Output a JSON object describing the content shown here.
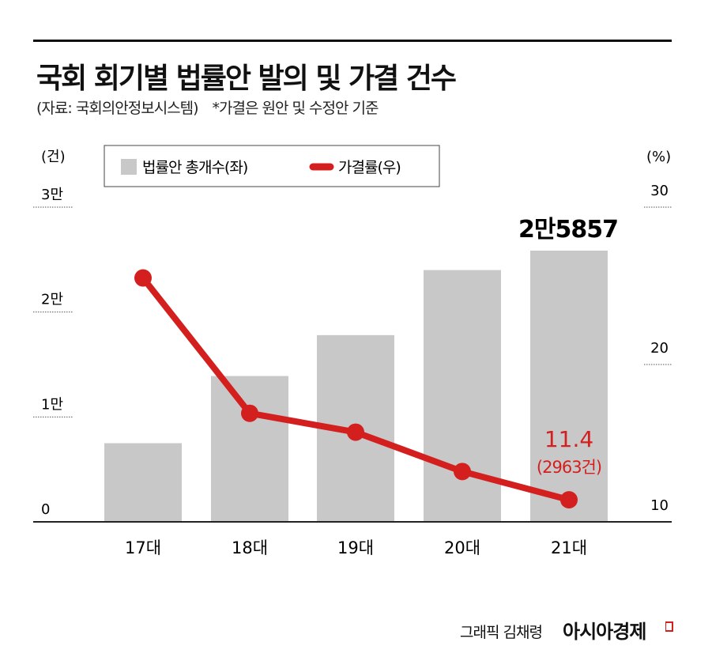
{
  "header": {
    "title": "국회 회기별 법률안 발의 및 가결 건수",
    "source": "(자료: 국회의안정보시스템)",
    "note": "*가결은 원안 및 수정안 기준"
  },
  "chart_data": {
    "type": "bar+line",
    "categories": [
      "17대",
      "18대",
      "19대",
      "20대",
      "21대"
    ],
    "series": [
      {
        "name": "법률안 총개수(좌)",
        "type": "bar",
        "axis": "left",
        "values": [
          7500,
          13900,
          17800,
          24000,
          25857
        ],
        "color": "#c8c8c8"
      },
      {
        "name": "가결률(우)",
        "type": "line",
        "axis": "right",
        "values": [
          25.5,
          16.9,
          15.7,
          13.2,
          11.4
        ],
        "color": "#d41f1f"
      }
    ],
    "left_axis": {
      "unit_label": "(건)",
      "range": [
        0,
        30000
      ],
      "ticks": [
        {
          "value": 0,
          "label": "0"
        },
        {
          "value": 10000,
          "label": "1만"
        },
        {
          "value": 20000,
          "label": "2만"
        },
        {
          "value": 30000,
          "label": "3만"
        }
      ]
    },
    "right_axis": {
      "unit_label": "(%)",
      "range": [
        10,
        30
      ],
      "ticks": [
        {
          "value": 10,
          "label": "10"
        },
        {
          "value": 20,
          "label": "20"
        },
        {
          "value": 30,
          "label": "30"
        }
      ]
    },
    "annotations": {
      "bar_last": "2만5857",
      "line_last": "11.4",
      "line_last_sub": "(2963건)"
    },
    "legend": {
      "position": "top-left",
      "bar_label": "법률안 총개수(좌)",
      "line_label": "가결률(우)"
    }
  },
  "footer": {
    "credit": "그래픽 김채령",
    "brand": "아시아경제"
  }
}
